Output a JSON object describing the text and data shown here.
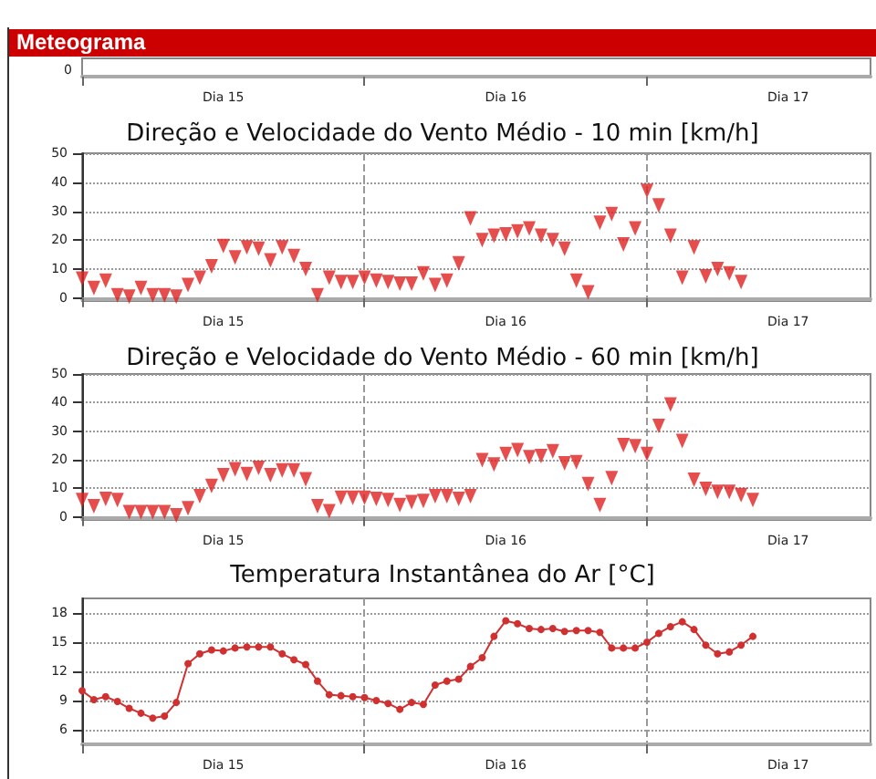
{
  "chart_data": [
    {
      "type": "other",
      "title": "Meteograma",
      "annotations": [
        "0"
      ],
      "categories": [
        null,
        null,
        null,
        null,
        null,
        null,
        null,
        null,
        null,
        null,
        null,
        null,
        "Dia 15",
        null,
        null,
        null,
        null,
        null,
        null,
        null,
        null,
        null,
        null,
        null,
        null,
        null,
        null,
        null,
        null,
        null,
        null,
        null,
        null,
        null,
        null,
        null,
        "Dia 16",
        null,
        null,
        null,
        null,
        null,
        null,
        null,
        null,
        null,
        null,
        null,
        null,
        null,
        null,
        null,
        null,
        null,
        null,
        null,
        null,
        null,
        null,
        null,
        "Dia 17",
        null,
        null,
        null,
        null,
        null,
        null,
        null
      ]
    },
    {
      "type": "scatter",
      "title": "Direção e Velocidade do Vento Médio - 10 min [km/h]",
      "color": "#e02020",
      "marker": "triangle",
      "categories": [
        null,
        null,
        null,
        null,
        null,
        null,
        null,
        null,
        null,
        null,
        null,
        null,
        "Dia 15",
        null,
        null,
        null,
        null,
        null,
        null,
        null,
        null,
        null,
        null,
        null,
        null,
        null,
        null,
        null,
        null,
        null,
        null,
        null,
        null,
        null,
        null,
        null,
        "Dia 16",
        null,
        null,
        null,
        null,
        null,
        null,
        null,
        null,
        null,
        null,
        null,
        null,
        null,
        null,
        null,
        null,
        null,
        null,
        null,
        null,
        null,
        null,
        null,
        "Dia 17",
        null,
        null,
        null,
        null,
        null,
        null,
        null
      ],
      "values": [
        6.7,
        3.5,
        6,
        1,
        0.5,
        3.5,
        1,
        1,
        0.5,
        4.5,
        7,
        11,
        18,
        14,
        17.5,
        17,
        13,
        17.5,
        14.5,
        10,
        1,
        7,
        5.5,
        5.5,
        7,
        6,
        5.5,
        5,
        5,
        8.5,
        4.5,
        6,
        12,
        27.5,
        20,
        21.5,
        22,
        23,
        24,
        21.5,
        20,
        17,
        6,
        2,
        26,
        29,
        18.5,
        24,
        37,
        32,
        21.5,
        7,
        17.5,
        7.5,
        10,
        8.5,
        5.5,
        null,
        null,
        null,
        null,
        null,
        null,
        null,
        null,
        null,
        null,
        null
      ],
      "ylim": [
        -1,
        50
      ],
      "yticks": [
        0,
        10,
        20,
        30,
        40,
        50
      ],
      "grid": true
    },
    {
      "type": "scatter",
      "title": "Direção e Velocidade do Vento Médio - 60 min [km/h]",
      "color": "#e02020",
      "marker": "triangle",
      "categories": [
        null,
        null,
        null,
        null,
        null,
        null,
        null,
        null,
        null,
        null,
        null,
        null,
        "Dia 15",
        null,
        null,
        null,
        null,
        null,
        null,
        null,
        null,
        null,
        null,
        null,
        null,
        null,
        null,
        null,
        null,
        null,
        null,
        null,
        null,
        null,
        null,
        null,
        "Dia 16",
        null,
        null,
        null,
        null,
        null,
        null,
        null,
        null,
        null,
        null,
        null,
        null,
        null,
        null,
        null,
        null,
        null,
        null,
        null,
        null,
        null,
        null,
        null,
        "Dia 17",
        null,
        null,
        null,
        null,
        null,
        null,
        null
      ],
      "values": [
        5.9,
        3.8,
        6.3,
        5.9,
        1.7,
        1.7,
        1.7,
        1.7,
        0.6,
        3.1,
        7.3,
        10.9,
        14.6,
        16.7,
        15,
        17.2,
        14.6,
        16.3,
        16.3,
        13.2,
        3.8,
        2,
        6.7,
        6.7,
        6.7,
        6.3,
        5.9,
        4.2,
        5.2,
        5.6,
        7.3,
        7.3,
        6.3,
        7.3,
        19.9,
        18.4,
        22,
        23.4,
        20.9,
        21.3,
        23,
        18.8,
        19.2,
        11.5,
        4.2,
        13.6,
        25.1,
        24.7,
        22,
        31.8,
        39.3,
        26.6,
        13,
        9.8,
        8.8,
        8.8,
        7.7,
        5.9,
        null,
        null,
        null,
        null,
        null,
        null,
        null,
        null,
        null,
        null
      ],
      "ylim": [
        -1,
        50
      ],
      "yticks": [
        0,
        10,
        20,
        30,
        40,
        50
      ],
      "grid": true
    },
    {
      "type": "line",
      "title": "Temperatura Instantânea do Ar [°C]",
      "color": "#d03030",
      "marker": "circle",
      "categories": [
        null,
        null,
        null,
        null,
        null,
        null,
        null,
        null,
        null,
        null,
        null,
        null,
        "Dia 15",
        null,
        null,
        null,
        null,
        null,
        null,
        null,
        null,
        null,
        null,
        null,
        null,
        null,
        null,
        null,
        null,
        null,
        null,
        null,
        null,
        null,
        null,
        null,
        "Dia 16",
        null,
        null,
        null,
        null,
        null,
        null,
        null,
        null,
        null,
        null,
        null,
        null,
        null,
        null,
        null,
        null,
        null,
        null,
        null,
        null,
        null,
        null,
        null,
        "Dia 17",
        null,
        null,
        null,
        null,
        null,
        null,
        null
      ],
      "values": [
        10,
        9.1,
        9.4,
        8.9,
        8.2,
        7.7,
        7.2,
        7.4,
        8.8,
        12.8,
        13.8,
        14.2,
        14.1,
        14.4,
        14.5,
        14.5,
        14.5,
        13.8,
        13.2,
        12.7,
        11,
        9.6,
        9.5,
        9.4,
        9.3,
        9,
        8.7,
        8.1,
        8.8,
        8.6,
        10.6,
        11,
        11.2,
        12.5,
        13.4,
        15.6,
        17.2,
        16.9,
        16.4,
        16.3,
        16.4,
        16.1,
        16.2,
        16.2,
        16,
        14.4,
        14.4,
        14.4,
        15,
        15.9,
        16.6,
        17.1,
        16.3,
        14.7,
        13.8,
        14,
        14.7,
        15.6,
        null,
        null,
        null,
        null,
        null,
        null,
        null,
        null,
        null,
        null
      ],
      "ylim": [
        4.5,
        19.5
      ],
      "yticks": [
        6,
        9,
        12,
        15,
        18
      ],
      "grid": true
    }
  ]
}
